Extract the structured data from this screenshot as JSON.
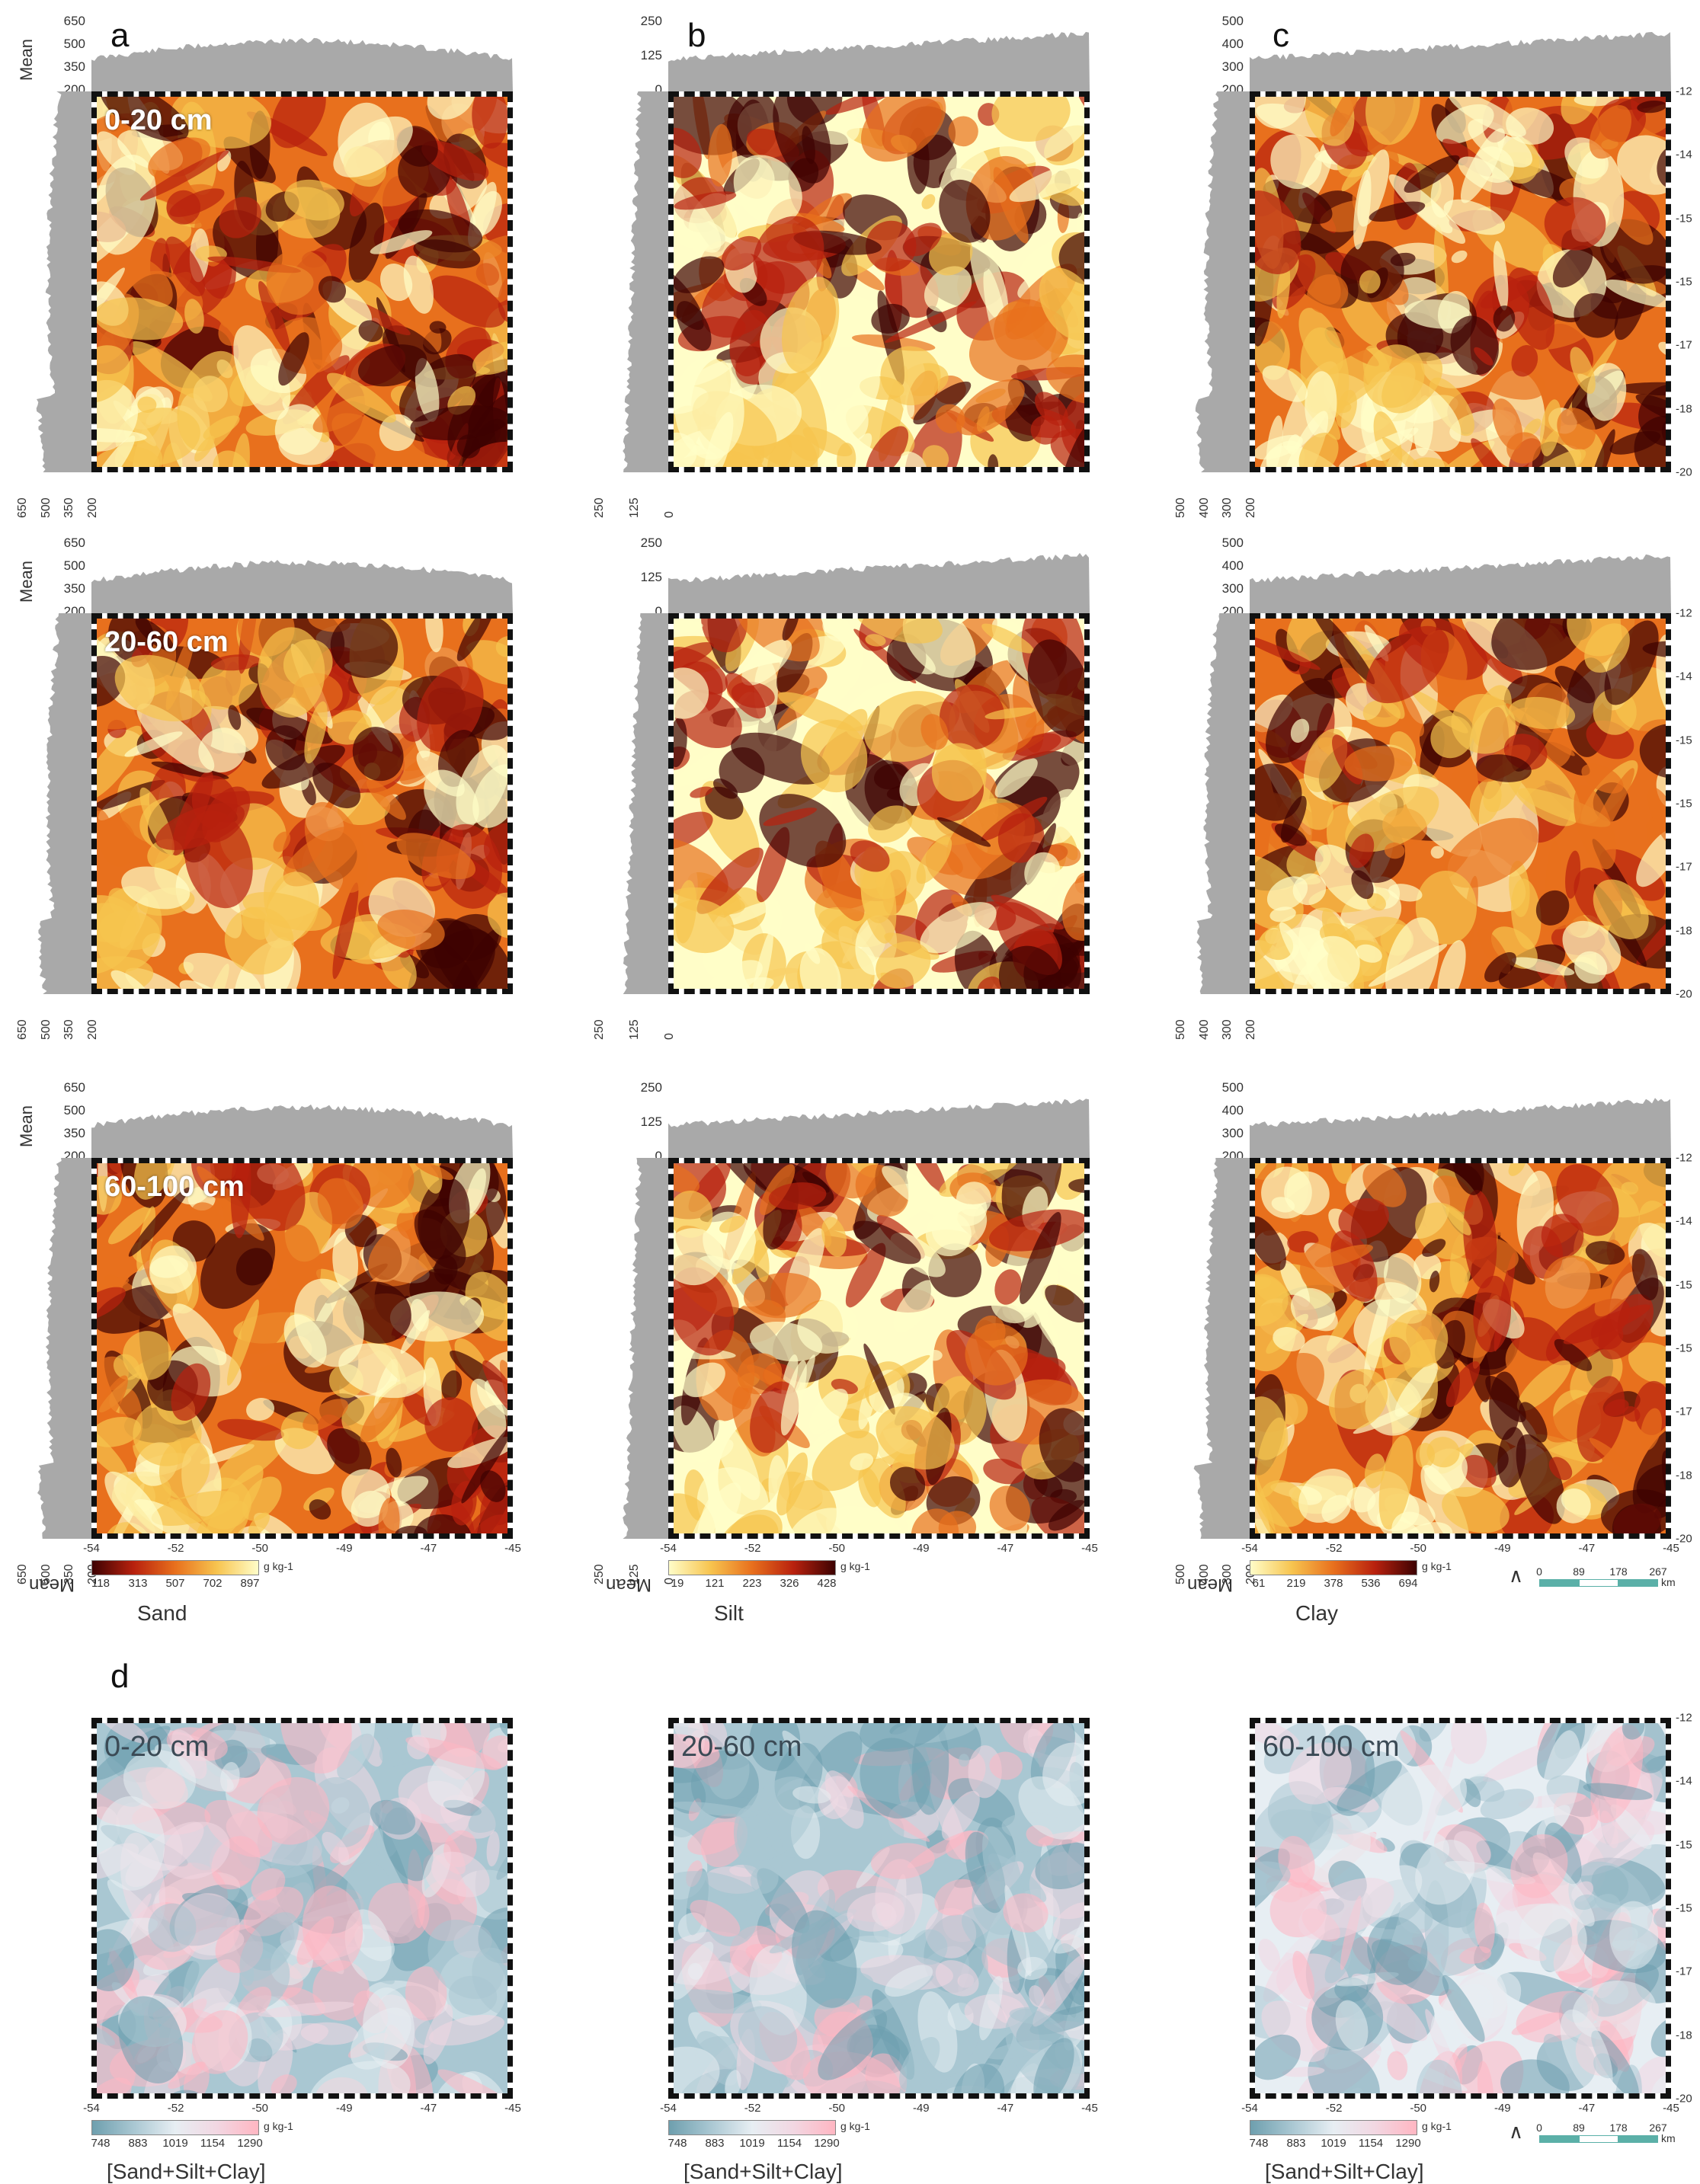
{
  "panels": {
    "a": {
      "letter": "a",
      "variable": "Sand",
      "unit": "g kg-1",
      "legend_ticks": [
        "118",
        "313",
        "507",
        "702",
        "897"
      ],
      "top_axis": [
        "650",
        "500",
        "350",
        "200"
      ],
      "bottom_axis": [
        "650",
        "500",
        "350",
        "200"
      ],
      "mean_label": "Mean"
    },
    "b": {
      "letter": "b",
      "variable": "Silt",
      "unit": "g kg-1",
      "legend_ticks": [
        "19",
        "121",
        "223",
        "326",
        "428"
      ],
      "top_axis": [
        "250",
        "125",
        "0"
      ],
      "bottom_axis": [
        "250",
        "125",
        "0"
      ],
      "mean_label": "Mean"
    },
    "c": {
      "letter": "c",
      "variable": "Clay",
      "unit": "g kg-1",
      "legend_ticks": [
        "61",
        "219",
        "378",
        "536",
        "694"
      ],
      "top_axis": [
        "500",
        "400",
        "300",
        "200"
      ],
      "bottom_axis": [
        "500",
        "400",
        "300",
        "200"
      ],
      "mean_label": "Mean"
    },
    "d": {
      "letter": "d",
      "variable": "[Sand+Silt+Clay]",
      "unit": "g kg-1",
      "legend_ticks": [
        "748",
        "883",
        "1019",
        "1154",
        "1290"
      ]
    }
  },
  "depths": [
    "0-20 cm",
    "20-60 cm",
    "60-100 cm"
  ],
  "lat_ticks": [
    "-12",
    "-14",
    "-15",
    "-15",
    "-17",
    "-18",
    "-20"
  ],
  "lon_ticks": [
    "-54",
    "-52",
    "-50",
    "-49",
    "-47",
    "-45"
  ],
  "scalebar": {
    "ticks": [
      "0",
      "89",
      "178",
      "267"
    ],
    "unit": "km"
  },
  "north_symbol": "north-arrow",
  "colors": {
    "profile": "#a9a9a9",
    "hot_ramp": [
      "#fffdc8",
      "#f7c44f",
      "#e8701d",
      "#b8210e",
      "#3d0202"
    ],
    "sum_ramp": [
      "#6e9fae",
      "#a9c7d2",
      "#e7eef3",
      "#f2d7e2",
      "#ffb6c2"
    ],
    "scalebar": "#5bb0a8"
  }
}
